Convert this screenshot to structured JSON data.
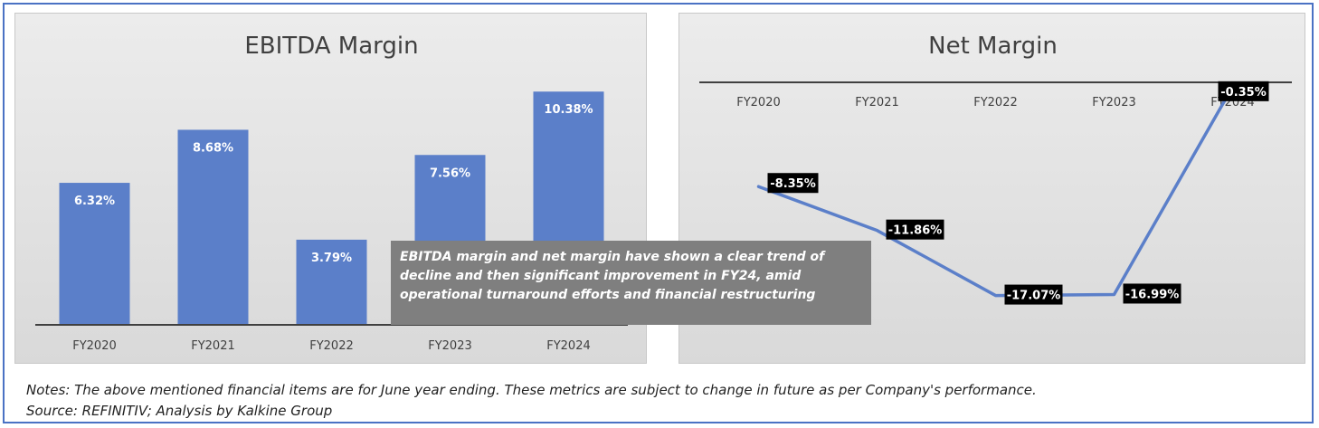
{
  "chart_data": [
    {
      "type": "bar",
      "title": "EBITDA Margin",
      "categories": [
        "FY2020",
        "FY2021",
        "FY2022",
        "FY2023",
        "FY2024"
      ],
      "values": [
        6.32,
        8.68,
        3.79,
        7.56,
        10.38
      ],
      "data_labels": [
        "6.32%",
        "8.68%",
        "3.79%",
        "7.56%",
        "10.38%"
      ],
      "ylim": [
        0,
        12
      ],
      "color": "#5b7fc9",
      "grid": false,
      "legend": "none"
    },
    {
      "type": "line",
      "title": "Net Margin",
      "categories": [
        "FY2020",
        "FY2021",
        "FY2022",
        "FY2023",
        "FY2024"
      ],
      "values": [
        -8.35,
        -11.86,
        -17.07,
        -16.99,
        -0.35
      ],
      "data_labels": [
        "-8.35%",
        "-11.86%",
        "-17.07%",
        "-16.99%",
        "-0.35%"
      ],
      "ylim": [
        -20,
        0
      ],
      "color": "#5b7fc9",
      "grid": false,
      "legend": "none"
    }
  ],
  "callout": {
    "text": "EBITDA margin and net margin have shown a clear trend of decline and then significant improvement in FY24, amid operational turnaround efforts and financial restructuring"
  },
  "footer": {
    "notes": "Notes: The above mentioned financial items are for June year ending. These metrics are subject to change in future as per Company's performance.",
    "source": "Source: REFINITIV; Analysis by Kalkine Group"
  }
}
